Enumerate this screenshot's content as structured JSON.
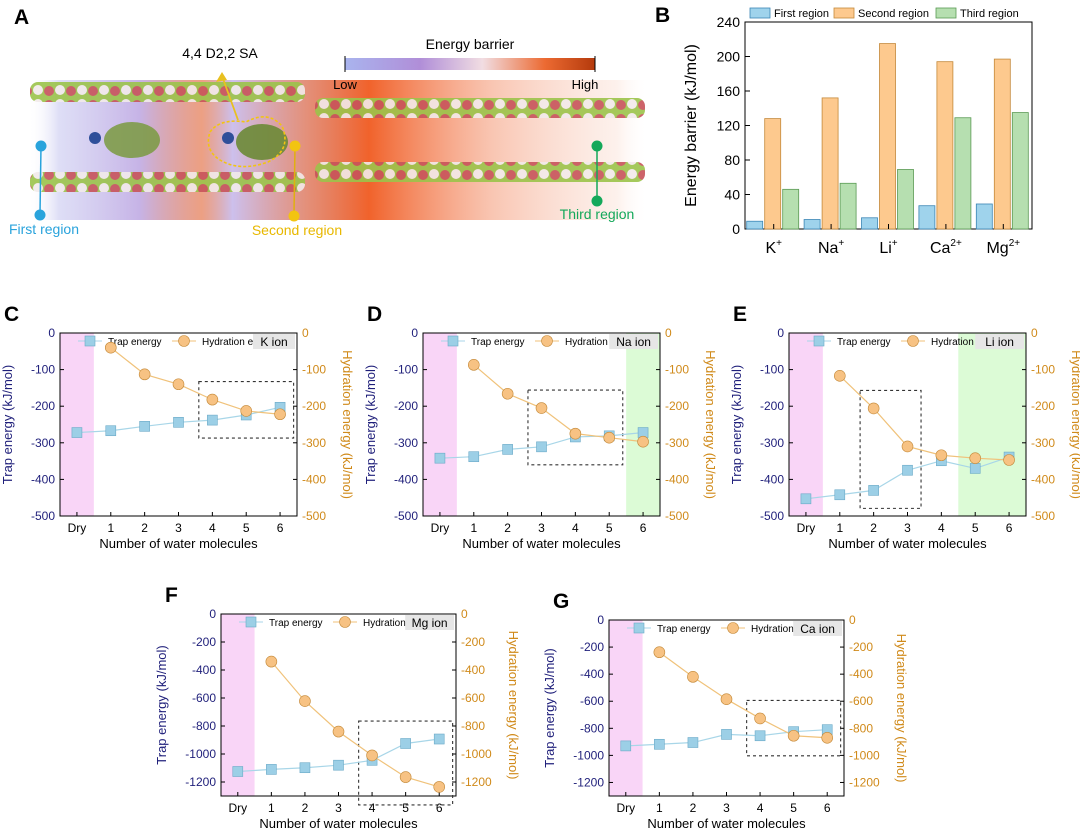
{
  "panel_a": {
    "label": "A",
    "site_label": "4,4 D2,2 SA",
    "colorbar": {
      "title": "Energy barrier",
      "low": "Low",
      "high": "High"
    },
    "regions": [
      {
        "name": "First region",
        "color": "#29a3dc"
      },
      {
        "name": "Second region",
        "color": "#f2c411"
      },
      {
        "name": "Third region",
        "color": "#14a85a"
      }
    ]
  },
  "colors": {
    "first": "#9fd3ec",
    "second": "#fdc98e",
    "third": "#b6dfb0",
    "trap_line": "#a8d6e8",
    "trap_marker": "#9ccfe6",
    "hyd_line": "#f0c27a",
    "hyd_marker": "#f7c283",
    "dry_band": "#f9d5f7",
    "green_band": "#dcfbd6",
    "left_axis": "#1f1f7a",
    "right_axis": "#d08a1a"
  },
  "chart_data": [
    {
      "panel": "B",
      "type": "bar",
      "categories": [
        {
          "base": "K",
          "sup": "+"
        },
        {
          "base": "Na",
          "sup": "+"
        },
        {
          "base": "Li",
          "sup": "+"
        },
        {
          "base": "Ca",
          "sup": "2+"
        },
        {
          "base": "Mg",
          "sup": "2+"
        }
      ],
      "series": [
        {
          "name": "First region",
          "values": [
            9,
            11,
            13,
            27,
            29
          ]
        },
        {
          "name": "Second region",
          "values": [
            128,
            152,
            215,
            194,
            197
          ]
        },
        {
          "name": "Third region",
          "values": [
            46,
            53,
            69,
            129,
            135
          ]
        }
      ],
      "ylabel": "Energy barrier (kJ/mol)",
      "ylim": [
        0,
        240
      ],
      "yticks": [
        0,
        40,
        80,
        120,
        160,
        200,
        240
      ],
      "legend": "top"
    },
    {
      "panel": "C",
      "type": "line",
      "ion": "K ion",
      "x": [
        "Dry",
        "1",
        "2",
        "3",
        "4",
        "5",
        "6"
      ],
      "series": [
        {
          "name": "Trap energy",
          "axis": "left",
          "values": [
            -272,
            -267,
            -255,
            -244,
            -238,
            -224,
            -203
          ]
        },
        {
          "name": "Hydration energy",
          "axis": "right",
          "values": [
            null,
            -40,
            -113,
            -140,
            -182,
            -213,
            -222
          ]
        }
      ],
      "xlabel": "Number of water molecules",
      "ylabel_left": "Trap energy (kJ/mol)",
      "ylabel_right": "Hydration energy (kJ/mol)",
      "ylim_left": [
        -500,
        0
      ],
      "yticks_left": [
        0,
        -100,
        -200,
        -300,
        -400,
        -500
      ],
      "ylim_right": [
        -500,
        0
      ],
      "yticks_right": [
        0,
        -100,
        -200,
        -300,
        -400,
        -500
      ],
      "shade_dry": true,
      "shade_green": [],
      "box": [
        4,
        6
      ]
    },
    {
      "panel": "D",
      "type": "line",
      "ion": "Na ion",
      "x": [
        "Dry",
        "1",
        "2",
        "3",
        "4",
        "5",
        "6"
      ],
      "series": [
        {
          "name": "Trap energy",
          "axis": "left",
          "values": [
            -342,
            -338,
            -318,
            -311,
            -284,
            -281,
            -272
          ]
        },
        {
          "name": "Hydration energy",
          "axis": "right",
          "values": [
            null,
            -87,
            -166,
            -205,
            -275,
            -286,
            -297
          ]
        }
      ],
      "xlabel": "Number of water molecules",
      "ylabel_left": "Trap energy (kJ/mol)",
      "ylabel_right": "Hydration energy (kJ/mol)",
      "ylim_left": [
        -500,
        0
      ],
      "yticks_left": [
        0,
        -100,
        -200,
        -300,
        -400,
        -500
      ],
      "ylim_right": [
        -500,
        0
      ],
      "yticks_right": [
        0,
        -100,
        -200,
        -300,
        -400,
        -500
      ],
      "shade_dry": true,
      "shade_green": [
        5.5,
        6.5
      ],
      "box": [
        3,
        5
      ]
    },
    {
      "panel": "E",
      "type": "line",
      "ion": "Li ion",
      "x": [
        "Dry",
        "1",
        "2",
        "3",
        "4",
        "5",
        "6"
      ],
      "series": [
        {
          "name": "Trap energy",
          "axis": "left",
          "values": [
            -453,
            -442,
            -430,
            -375,
            -349,
            -370,
            -339
          ]
        },
        {
          "name": "Hydration energy",
          "axis": "right",
          "values": [
            null,
            -117,
            -206,
            -310,
            -334,
            -342,
            -347
          ]
        }
      ],
      "xlabel": "Number of water molecules",
      "ylabel_left": "Trap energy (kJ/mol)",
      "ylabel_right": "Hydration energy (kJ/mol)",
      "ylim_left": [
        -500,
        0
      ],
      "yticks_left": [
        0,
        -100,
        -200,
        -300,
        -400,
        -500
      ],
      "ylim_right": [
        -500,
        0
      ],
      "yticks_right": [
        0,
        -100,
        -200,
        -300,
        -400,
        -500
      ],
      "shade_dry": true,
      "shade_green": [
        4.5,
        6.5
      ],
      "box": [
        2,
        3
      ]
    },
    {
      "panel": "F",
      "type": "line",
      "ion": "Mg ion",
      "x": [
        "Dry",
        "1",
        "2",
        "3",
        "4",
        "5",
        "6"
      ],
      "series": [
        {
          "name": "Trap energy",
          "axis": "left",
          "values": [
            -1125,
            -1110,
            -1098,
            -1080,
            -1045,
            -925,
            -893
          ]
        },
        {
          "name": "Hydration energy",
          "axis": "right",
          "values": [
            null,
            -340,
            -622,
            -840,
            -1010,
            -1165,
            -1235
          ]
        }
      ],
      "xlabel": "Number of water molecules",
      "ylabel_left": "Trap energy (kJ/mol)",
      "ylabel_right": "Hydration energy (kJ/mol)",
      "ylim_left": [
        -1300,
        0
      ],
      "yticks_left": [
        0,
        -200,
        -400,
        -600,
        -800,
        -1000,
        -1200
      ],
      "ylim_right": [
        -1300,
        0
      ],
      "yticks_right": [
        0,
        -200,
        -400,
        -600,
        -800,
        -1000,
        -1200
      ],
      "shade_dry": true,
      "shade_green": [],
      "box": [
        4,
        6
      ]
    },
    {
      "panel": "G",
      "type": "line",
      "ion": "Ca ion",
      "x": [
        "Dry",
        "1",
        "2",
        "3",
        "4",
        "5",
        "6"
      ],
      "series": [
        {
          "name": "Trap energy",
          "axis": "left",
          "values": [
            -930,
            -918,
            -905,
            -845,
            -855,
            -825,
            -810
          ]
        },
        {
          "name": "Hydration energy",
          "axis": "right",
          "values": [
            null,
            -238,
            -420,
            -585,
            -727,
            -855,
            -870
          ]
        }
      ],
      "xlabel": "Number of water molecules",
      "ylabel_left": "Trap energy (kJ/mol)",
      "ylabel_right": "Hydration energy (kJ/mol)",
      "ylim_left": [
        -1300,
        0
      ],
      "yticks_left": [
        0,
        -200,
        -400,
        -600,
        -800,
        -1000,
        -1200
      ],
      "ylim_right": [
        -1300,
        0
      ],
      "yticks_right": [
        0,
        -200,
        -400,
        -600,
        -800,
        -1000,
        -1200
      ],
      "shade_dry": true,
      "shade_green": [],
      "box": [
        4,
        6
      ]
    }
  ]
}
